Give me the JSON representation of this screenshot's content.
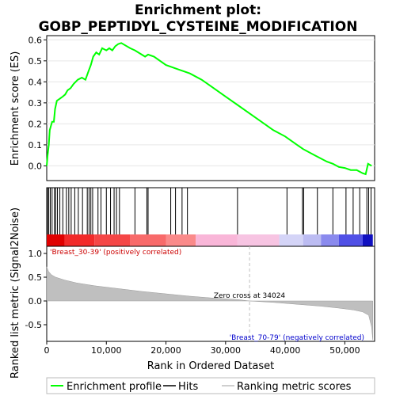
{
  "title_line1": "Enrichment plot:",
  "title_line2": "GOBP_PEPTIDYL_CYSTEINE_MODIFICATION",
  "colors": {
    "es_line": "#00ff00",
    "hits": "#000000",
    "metric_fill": "#bfbfbf",
    "pos_label": "#cc0000",
    "neg_label": "#0000cc",
    "zero_cross_line": "#c0c0c0"
  },
  "chart_data": [
    {
      "type": "line",
      "name": "enrichment-profile",
      "ylabel": "Enrichment score (ES)",
      "xlim": [
        0,
        55000
      ],
      "ylim": [
        -0.07,
        0.62
      ],
      "yticks": [
        "0.0",
        "0.1",
        "0.2",
        "0.3",
        "0.4",
        "0.5",
        "0.6"
      ],
      "ytick_values": [
        0.0,
        0.1,
        0.2,
        0.3,
        0.4,
        0.5,
        0.6
      ],
      "points": [
        [
          0,
          0.0
        ],
        [
          150,
          0.05
        ],
        [
          350,
          0.1
        ],
        [
          500,
          0.17
        ],
        [
          700,
          0.19
        ],
        [
          900,
          0.21
        ],
        [
          1200,
          0.21
        ],
        [
          1400,
          0.27
        ],
        [
          1700,
          0.31
        ],
        [
          2200,
          0.32
        ],
        [
          2700,
          0.33
        ],
        [
          3100,
          0.34
        ],
        [
          3500,
          0.36
        ],
        [
          4000,
          0.37
        ],
        [
          4500,
          0.39
        ],
        [
          5200,
          0.41
        ],
        [
          5900,
          0.42
        ],
        [
          6500,
          0.41
        ],
        [
          7000,
          0.45
        ],
        [
          7400,
          0.48
        ],
        [
          7800,
          0.52
        ],
        [
          8300,
          0.54
        ],
        [
          8800,
          0.53
        ],
        [
          9300,
          0.56
        ],
        [
          10000,
          0.55
        ],
        [
          10500,
          0.56
        ],
        [
          11000,
          0.55
        ],
        [
          11500,
          0.57
        ],
        [
          12000,
          0.58
        ],
        [
          12500,
          0.585
        ],
        [
          14000,
          0.56
        ],
        [
          14800,
          0.55
        ],
        [
          16500,
          0.52
        ],
        [
          17000,
          0.53
        ],
        [
          18000,
          0.52
        ],
        [
          20000,
          0.48
        ],
        [
          22000,
          0.46
        ],
        [
          24000,
          0.44
        ],
        [
          26000,
          0.41
        ],
        [
          28000,
          0.37
        ],
        [
          30000,
          0.33
        ],
        [
          32000,
          0.29
        ],
        [
          34000,
          0.25
        ],
        [
          36000,
          0.21
        ],
        [
          38000,
          0.17
        ],
        [
          40000,
          0.14
        ],
        [
          42000,
          0.1
        ],
        [
          43000,
          0.08
        ],
        [
          45000,
          0.05
        ],
        [
          47000,
          0.02
        ],
        [
          48000,
          0.01
        ],
        [
          49000,
          -0.005
        ],
        [
          50000,
          -0.01
        ],
        [
          51000,
          -0.02
        ],
        [
          52000,
          -0.02
        ],
        [
          53000,
          -0.035
        ],
        [
          53500,
          -0.04
        ],
        [
          53900,
          0.01
        ],
        [
          54500,
          0.0
        ]
      ]
    },
    {
      "type": "hits",
      "name": "hits",
      "positions": [
        150,
        350,
        600,
        900,
        1300,
        1500,
        1800,
        2200,
        2700,
        3300,
        3700,
        4100,
        4700,
        5300,
        6000,
        6800,
        7100,
        7400,
        7700,
        8600,
        9100,
        10000,
        10700,
        11300,
        11700,
        12200,
        14800,
        16800,
        17000,
        20800,
        21600,
        22700,
        23600,
        32000,
        40300,
        42900,
        43100,
        45400,
        48000,
        50200,
        51400,
        52500,
        53700,
        54000,
        54400
      ]
    },
    {
      "type": "area",
      "name": "ranking-metric",
      "ylabel": "Ranked list metric (Signal2Noise)",
      "xlabel": "Rank in Ordered Dataset",
      "xlim": [
        0,
        55000
      ],
      "ylim": [
        -0.85,
        1.15
      ],
      "yticks": [
        "-0.5",
        "0.0",
        "0.5",
        "1.0"
      ],
      "ytick_values": [
        -0.5,
        0.0,
        0.5,
        1.0
      ],
      "xticks": [
        "0",
        "10,000",
        "20,000",
        "30,000",
        "40,000",
        "50,000"
      ],
      "xtick_values": [
        0,
        10000,
        20000,
        30000,
        40000,
        50000
      ],
      "points": [
        [
          0,
          0.72
        ],
        [
          300,
          0.62
        ],
        [
          800,
          0.55
        ],
        [
          1500,
          0.5
        ],
        [
          3000,
          0.44
        ],
        [
          5000,
          0.38
        ],
        [
          8000,
          0.32
        ],
        [
          12000,
          0.26
        ],
        [
          16000,
          0.2
        ],
        [
          20000,
          0.15
        ],
        [
          24000,
          0.1
        ],
        [
          28000,
          0.06
        ],
        [
          32000,
          0.03
        ],
        [
          34024,
          0.0
        ],
        [
          38000,
          -0.03
        ],
        [
          42000,
          -0.07
        ],
        [
          46000,
          -0.11
        ],
        [
          49000,
          -0.15
        ],
        [
          51500,
          -0.19
        ],
        [
          53000,
          -0.23
        ],
        [
          54000,
          -0.3
        ],
        [
          54500,
          -0.55
        ],
        [
          54700,
          -0.82
        ]
      ],
      "zero_cross": 34024
    }
  ],
  "annotations": {
    "pos_label": "'Breast_30-39' (positively correlated)",
    "neg_label": "'Breast_70-79' (negatively correlated)",
    "zero_cross": "Zero cross at 34024"
  },
  "legend": {
    "entries": [
      {
        "label": "Enrichment profile",
        "style": "es"
      },
      {
        "label": "Hits",
        "style": "hits"
      },
      {
        "label": "Ranking metric scores",
        "style": "metric"
      }
    ]
  }
}
